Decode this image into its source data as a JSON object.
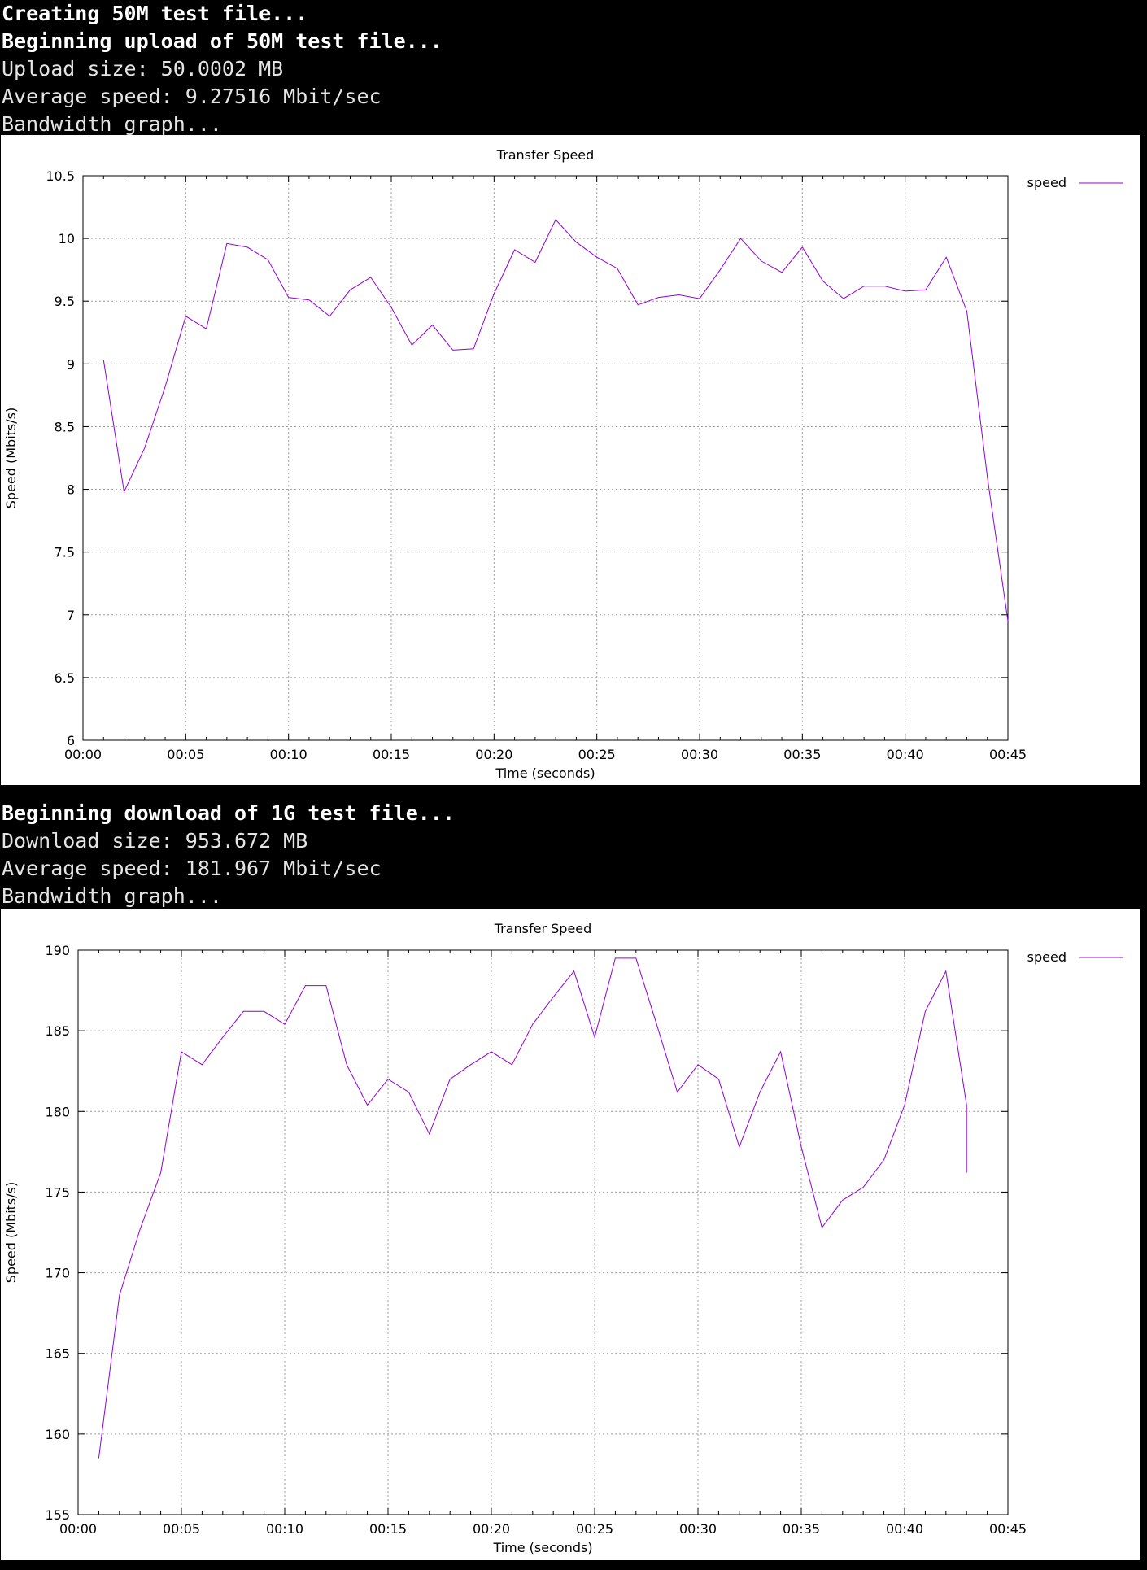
{
  "terminal": {
    "upload_lines": [
      {
        "text": "Creating 50M test file...",
        "bold": true
      },
      {
        "text": "Beginning upload of 50M test file...",
        "bold": true
      },
      {
        "text": "Upload size: 50.0002 MB",
        "bold": false
      },
      {
        "text": "Average speed: 9.27516 Mbit/sec",
        "bold": false
      },
      {
        "text": "Bandwidth graph...",
        "bold": false
      }
    ],
    "download_lines": [
      {
        "text": "Beginning download of 1G test file...",
        "bold": true
      },
      {
        "text": "Download size: 953.672 MB",
        "bold": false
      },
      {
        "text": "Average speed: 181.967 Mbit/sec",
        "bold": false
      },
      {
        "text": "Bandwidth graph...",
        "bold": false
      }
    ]
  },
  "colors": {
    "series": "#9400d3",
    "grid": "#a0a0a0"
  },
  "chart_data": [
    {
      "type": "line",
      "title": "Transfer Speed",
      "xlabel": "Time (seconds)",
      "ylabel": "Speed (Mbits/s)",
      "xlim": [
        0,
        45
      ],
      "ylim": [
        6,
        10.5
      ],
      "xticks": [
        0,
        5,
        10,
        15,
        20,
        25,
        30,
        35,
        40,
        45
      ],
      "xtick_labels": [
        "00:00",
        "00:05",
        "00:10",
        "00:15",
        "00:20",
        "00:25",
        "00:30",
        "00:35",
        "00:40",
        "00:45"
      ],
      "yticks": [
        6,
        6.5,
        7,
        7.5,
        8,
        8.5,
        9,
        9.5,
        10,
        10.5
      ],
      "ytick_labels": [
        "6",
        "6.5",
        "7",
        "7.5",
        "8",
        "8.5",
        "9",
        "9.5",
        "10",
        "10.5"
      ],
      "grid": true,
      "legend_position": "top-right",
      "series": [
        {
          "name": "speed",
          "x": [
            1,
            2,
            3,
            4,
            5,
            6,
            7,
            8,
            9,
            10,
            11,
            12,
            13,
            14,
            15,
            16,
            17,
            18,
            19,
            20,
            21,
            22,
            23,
            24,
            25,
            26,
            27,
            28,
            29,
            30,
            31,
            32,
            33,
            34,
            35,
            36,
            37,
            38,
            39,
            40,
            41,
            42,
            43,
            44,
            45
          ],
          "y": [
            9.03,
            7.98,
            8.33,
            8.82,
            9.38,
            9.28,
            9.96,
            9.93,
            9.83,
            9.53,
            9.51,
            9.38,
            9.59,
            9.69,
            9.45,
            9.15,
            9.31,
            9.11,
            9.12,
            9.56,
            9.91,
            9.81,
            10.15,
            9.97,
            9.85,
            9.76,
            9.47,
            9.53,
            9.55,
            9.52,
            9.75,
            10.0,
            9.82,
            9.73,
            9.93,
            9.66,
            9.52,
            9.62,
            9.62,
            9.58,
            9.59,
            9.85,
            9.42,
            8.1,
            6.95
          ]
        }
      ]
    },
    {
      "type": "line",
      "title": "Transfer Speed",
      "xlabel": "Time (seconds)",
      "ylabel": "Speed (Mbits/s)",
      "xlim": [
        0,
        45
      ],
      "ylim": [
        155,
        190
      ],
      "xticks": [
        0,
        5,
        10,
        15,
        20,
        25,
        30,
        35,
        40,
        45
      ],
      "xtick_labels": [
        "00:00",
        "00:05",
        "00:10",
        "00:15",
        "00:20",
        "00:25",
        "00:30",
        "00:35",
        "00:40",
        "00:45"
      ],
      "yticks": [
        155,
        160,
        165,
        170,
        175,
        180,
        185,
        190
      ],
      "ytick_labels": [
        "155",
        "160",
        "165",
        "170",
        "175",
        "180",
        "185",
        "190"
      ],
      "grid": true,
      "legend_position": "top-right",
      "series": [
        {
          "name": "speed",
          "x": [
            1,
            2,
            3,
            4,
            5,
            6,
            7,
            8,
            9,
            10,
            11,
            12,
            13,
            14,
            15,
            16,
            17,
            18,
            19,
            20,
            21,
            22,
            23,
            24,
            25,
            26,
            27,
            28,
            29,
            30,
            31,
            32,
            33,
            34,
            35,
            36,
            37,
            38,
            39,
            40,
            41,
            42,
            43,
            43
          ],
          "y": [
            158.5,
            168.6,
            172.7,
            176.2,
            183.7,
            182.9,
            184.6,
            186.2,
            186.2,
            185.4,
            187.8,
            187.8,
            182.9,
            180.4,
            182.0,
            181.2,
            178.6,
            182.0,
            182.9,
            183.7,
            182.9,
            185.4,
            187.1,
            188.7,
            184.6,
            189.5,
            189.5,
            185.4,
            181.2,
            182.9,
            182.0,
            177.8,
            181.2,
            183.7,
            177.8,
            172.8,
            174.5,
            175.3,
            177.0,
            180.4,
            186.2,
            188.7,
            180.4,
            176.2
          ]
        }
      ]
    }
  ]
}
